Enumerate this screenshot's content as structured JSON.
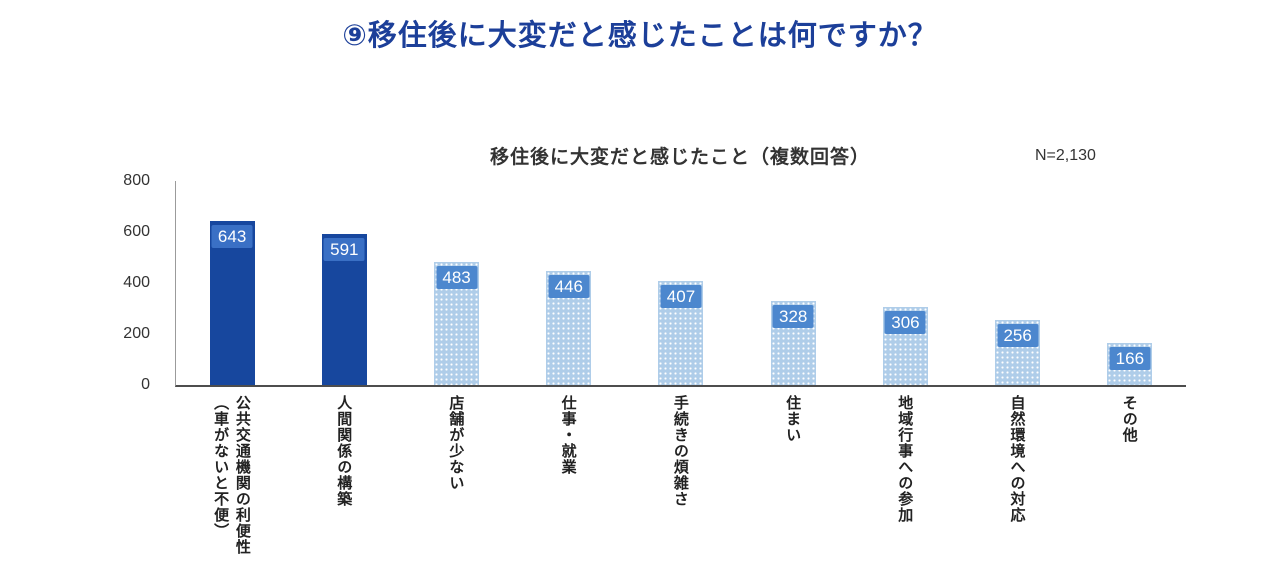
{
  "page": {
    "title": "⑨移住後に大変だと感じたことは何ですか？"
  },
  "chart": {
    "title": "移住後に大変だと感じたこと（複数回答）",
    "sample_label": "N=2,130"
  },
  "chart_data": {
    "type": "bar",
    "title": "移住後に大変だと感じたこと（複数回答）",
    "sample_size_label": "N=2,130",
    "categories": [
      "公共交通機関の利便性\n（車がないと不便）",
      "人間関係の構築",
      "店舗が少ない",
      "仕事・就業",
      "手続きの煩雑さ",
      "住まい",
      "地域行事への参加",
      "自然環境への対応",
      "その他"
    ],
    "values": [
      643,
      591,
      483,
      446,
      407,
      328,
      306,
      256,
      166
    ],
    "ylim": [
      0,
      800
    ],
    "yticks": [
      0,
      200,
      400,
      600,
      800
    ],
    "highlight_count": 2,
    "legend": "none",
    "grid": "off",
    "colors": {
      "highlight_bar": "#17479E",
      "normal_bar": "#AFCDE9",
      "value_badge_on_highlight": "#3A70C5",
      "value_badge_on_normal": "#4C87CE",
      "page_title": "#1C3F99"
    }
  }
}
